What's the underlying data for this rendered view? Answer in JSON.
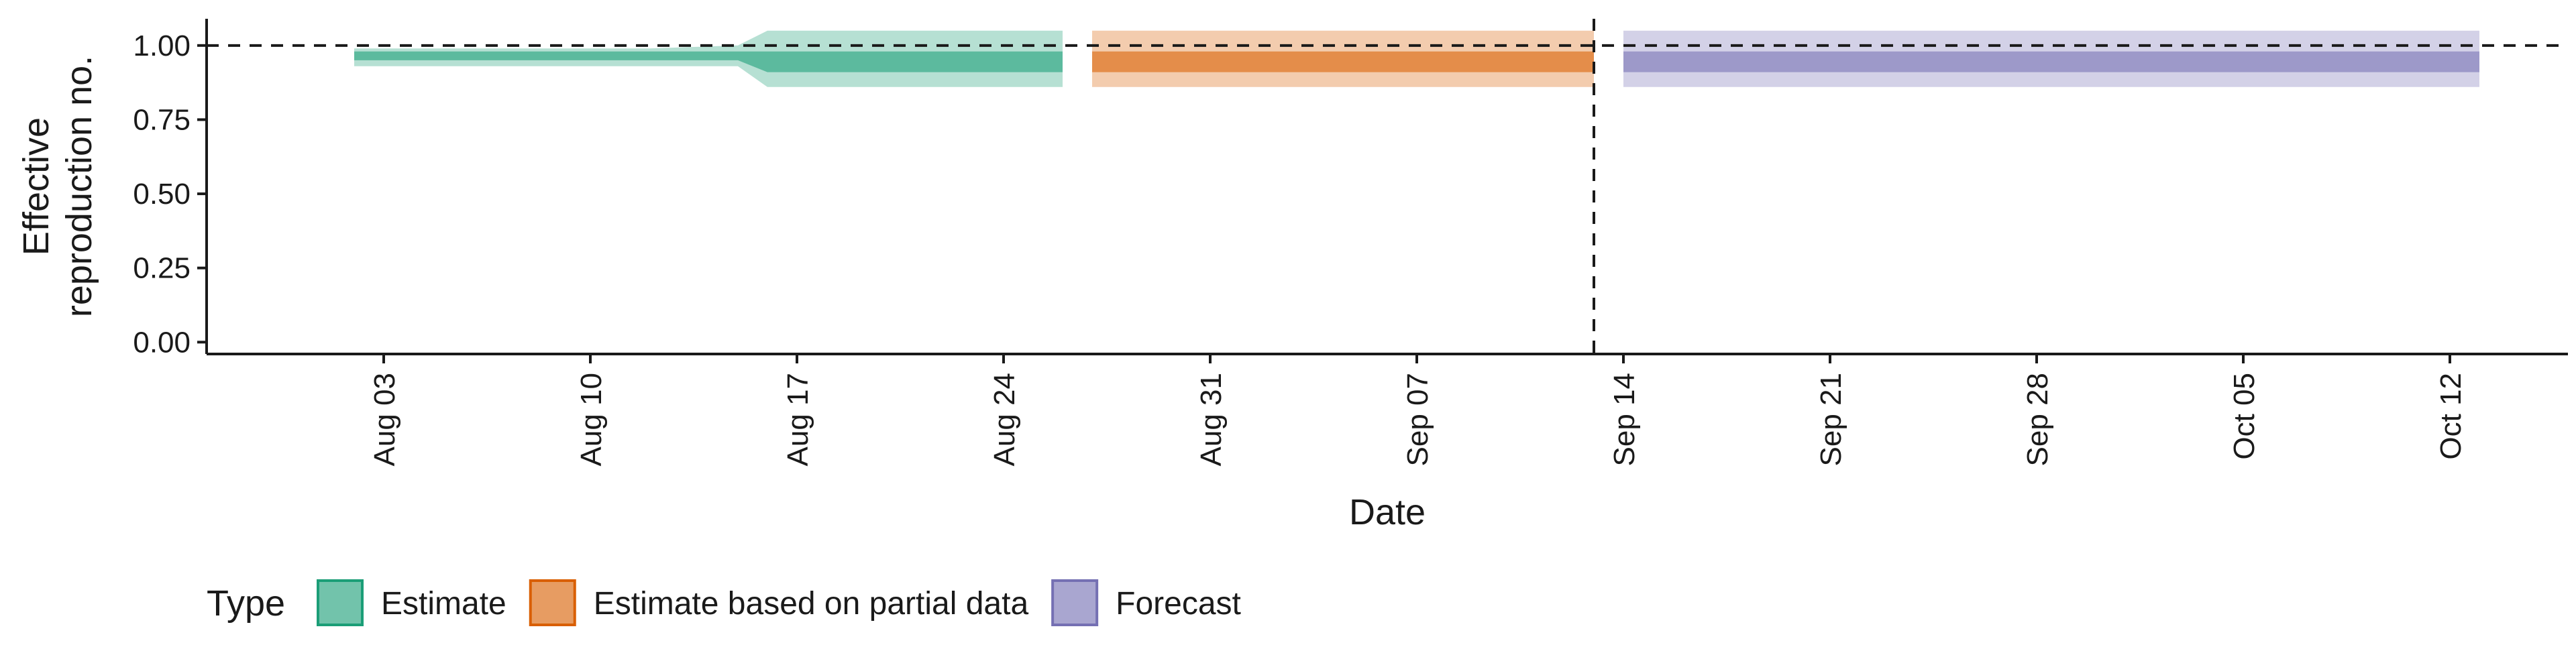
{
  "chart_data": {
    "type": "area",
    "xlabel": "Date",
    "ylabel": "Effective reproduction no.",
    "ylabel_lines": [
      "Effective",
      "reproduction no."
    ],
    "ylim": [
      -0.04,
      1.09
    ],
    "yticks": [
      0.0,
      0.25,
      0.5,
      0.75,
      1.0
    ],
    "ytick_labels": [
      "0.00",
      "0.25",
      "0.50",
      "0.75",
      "1.00"
    ],
    "xlim": [
      "2020-07-28",
      "2020-10-16"
    ],
    "xticks": [
      "2020-08-03",
      "2020-08-10",
      "2020-08-17",
      "2020-08-24",
      "2020-08-31",
      "2020-09-07",
      "2020-09-14",
      "2020-09-21",
      "2020-09-28",
      "2020-10-05",
      "2020-10-12"
    ],
    "xtick_labels": [
      "Aug 03",
      "Aug 10",
      "Aug 17",
      "Aug 24",
      "Aug 31",
      "Sep 07",
      "Sep 14",
      "Sep 21",
      "Sep 28",
      "Oct 05",
      "Oct 12"
    ],
    "reference_line_y": 1.0,
    "forecast_date": "2020-09-13",
    "legend": {
      "title": "Type",
      "position": "bottom",
      "items": [
        {
          "label": "Estimate",
          "color": "#1b9e77"
        },
        {
          "label": "Estimate based on partial data",
          "color": "#d95f02"
        },
        {
          "label": "Forecast",
          "color": "#7570b3"
        }
      ]
    },
    "series": [
      {
        "name": "Estimate",
        "color": "#1b9e77",
        "x": [
          "2020-08-02",
          "2020-08-07",
          "2020-08-12",
          "2020-08-15",
          "2020-08-16",
          "2020-08-21",
          "2020-08-26"
        ],
        "outer_low": [
          0.93,
          0.93,
          0.93,
          0.93,
          0.86,
          0.86,
          0.86
        ],
        "outer_high": [
          0.99,
          0.99,
          0.99,
          1.0,
          1.05,
          1.05,
          1.05
        ],
        "inner_low": [
          0.95,
          0.95,
          0.95,
          0.95,
          0.91,
          0.91,
          0.91
        ],
        "inner_high": [
          0.98,
          0.98,
          0.98,
          0.98,
          0.98,
          0.98,
          0.98
        ]
      },
      {
        "name": "Estimate based on partial data",
        "color": "#d95f02",
        "x": [
          "2020-08-27",
          "2020-09-13"
        ],
        "outer_low": [
          0.86,
          0.86
        ],
        "outer_high": [
          1.05,
          1.05
        ],
        "inner_low": [
          0.91,
          0.91
        ],
        "inner_high": [
          0.98,
          0.98
        ]
      },
      {
        "name": "Forecast",
        "color": "#7570b3",
        "x": [
          "2020-09-14",
          "2020-10-13"
        ],
        "outer_low": [
          0.86,
          0.86
        ],
        "outer_high": [
          1.05,
          1.05
        ],
        "inner_low": [
          0.91,
          0.91
        ],
        "inner_high": [
          0.98,
          0.98
        ]
      }
    ]
  }
}
